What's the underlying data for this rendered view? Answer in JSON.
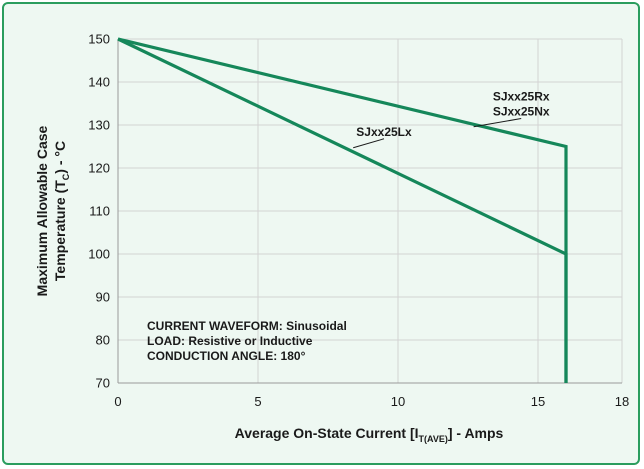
{
  "chart_data": {
    "type": "line",
    "xlabel": {
      "prefix": "Average On-State Current [I",
      "sub": "T(AVE)",
      "suffix": "] - Amps"
    },
    "ylabel": {
      "line1": "Maximum Allowable Case",
      "line2_prefix": "Temperature (T",
      "line2_sub": "C",
      "line2_suffix": ") - °C"
    },
    "xlim": [
      0,
      18
    ],
    "ylim": [
      70,
      150
    ],
    "xticks": [
      0,
      5,
      10,
      15,
      18
    ],
    "yticks": [
      70,
      80,
      90,
      100,
      110,
      120,
      130,
      140,
      150
    ],
    "grid": true,
    "series": [
      {
        "name": "SJxx25Rx / SJxx25Nx",
        "x": [
          0,
          16,
          16
        ],
        "y": [
          150,
          125,
          70
        ]
      },
      {
        "name": "SJxx25Lx",
        "x": [
          0,
          16,
          16
        ],
        "y": [
          150,
          100,
          70
        ]
      }
    ],
    "series_labels": [
      {
        "lines": [
          "SJxx25Rx",
          "SJxx25Nx"
        ],
        "anchor": [
          14.4,
          131.5
        ],
        "leader_to": [
          12.7,
          129.6
        ]
      },
      {
        "lines": [
          "SJxx25Lx"
        ],
        "anchor": [
          9.5,
          126.8
        ],
        "leader_to": [
          8.4,
          124.7
        ]
      }
    ],
    "annotations": [
      "CURRENT WAVEFORM: Sinusoidal",
      "LOAD: Resistive or Inductive",
      "CONDUCTION ANGLE: 180°"
    ],
    "line_color": "#15875a",
    "grid_color": "#d3d3d3"
  }
}
